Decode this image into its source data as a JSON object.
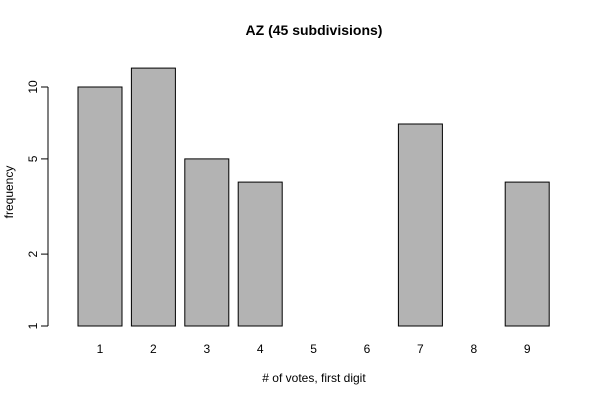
{
  "chart_data": {
    "type": "bar",
    "title": "AZ (45 subdivisions)",
    "xlabel": "# of votes, first digit",
    "ylabel": "frequency",
    "y_scale": "log",
    "ylim": [
      1,
      13
    ],
    "y_ticks": [
      1,
      2,
      5,
      10
    ],
    "categories": [
      "1",
      "2",
      "3",
      "4",
      "5",
      "6",
      "7",
      "8",
      "9"
    ],
    "values": [
      10,
      12,
      5,
      4,
      null,
      1,
      7,
      1,
      4
    ],
    "bar_color": "#b3b3b3",
    "grid": false,
    "legend": "none"
  }
}
